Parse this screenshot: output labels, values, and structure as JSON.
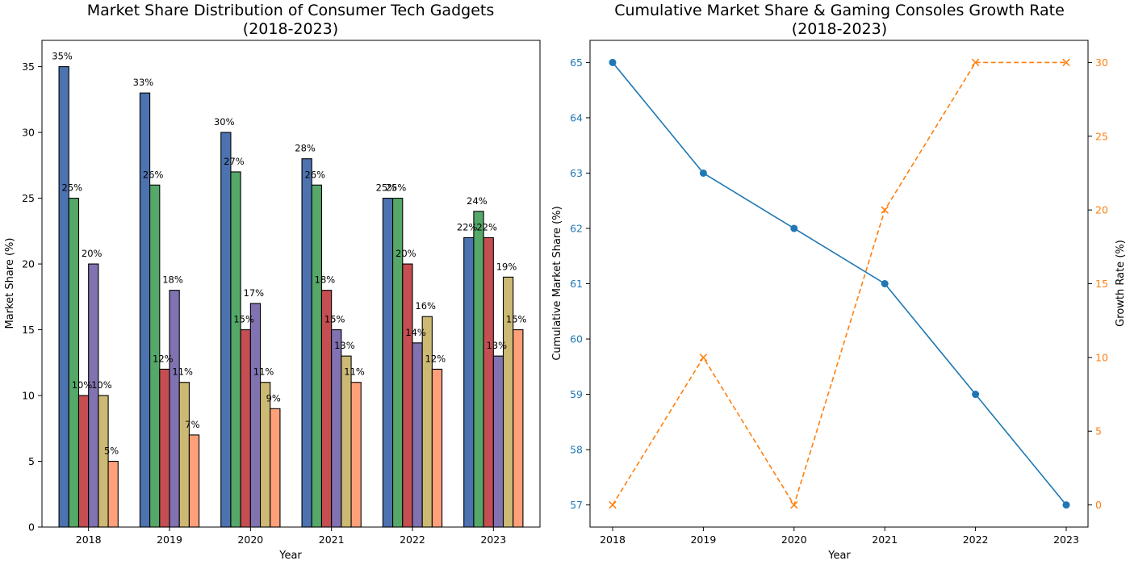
{
  "chart_data": [
    {
      "type": "bar",
      "title": "Market Share Distribution of Consumer Tech Gadgets",
      "subtitle": "(2018-2023)",
      "xlabel": "Year",
      "ylabel": "Market Share (%)",
      "ylim": [
        0,
        37
      ],
      "yticks": [
        0,
        5,
        10,
        15,
        20,
        25,
        30,
        35
      ],
      "categories": [
        "2018",
        "2019",
        "2020",
        "2021",
        "2022",
        "2023"
      ],
      "grid": false,
      "legend": "none",
      "value_suffix": "%",
      "series": [
        {
          "color": "#4c72b0",
          "values": [
            35,
            33,
            30,
            28,
            25,
            22
          ]
        },
        {
          "color": "#55a868",
          "values": [
            25,
            26,
            27,
            26,
            25,
            24
          ]
        },
        {
          "color": "#c44e52",
          "values": [
            10,
            12,
            15,
            18,
            20,
            22
          ]
        },
        {
          "color": "#8172b2",
          "values": [
            20,
            18,
            17,
            15,
            14,
            13
          ]
        },
        {
          "color": "#ccb974",
          "values": [
            10,
            11,
            11,
            13,
            16,
            19
          ]
        },
        {
          "color": "#ffa07a",
          "values": [
            5,
            7,
            9,
            11,
            12,
            15
          ]
        }
      ]
    },
    {
      "type": "line",
      "title": "Cumulative Market Share & Gaming Consoles Growth Rate",
      "subtitle": "(2018-2023)",
      "xlabel": "Year",
      "x": [
        "2018",
        "2019",
        "2020",
        "2021",
        "2022",
        "2023"
      ],
      "grid": false,
      "legend": "none",
      "left_axis": {
        "label": "Cumulative Market Share (%)",
        "color": "#1f77b4",
        "ylim": [
          56.6,
          65.4
        ],
        "ticks": [
          57,
          58,
          59,
          60,
          61,
          62,
          63,
          64,
          65
        ],
        "values": [
          65,
          63,
          62,
          61,
          59,
          57
        ],
        "marker": "circle",
        "linestyle": "solid"
      },
      "right_axis": {
        "label": "Growth Rate (%)",
        "color": "#ff7f0e",
        "ylim": [
          -1.5,
          31.5
        ],
        "ticks": [
          0,
          5,
          10,
          15,
          20,
          25,
          30
        ],
        "values": [
          0,
          10,
          0,
          20,
          30,
          30
        ],
        "marker": "x",
        "linestyle": "dashed"
      }
    }
  ]
}
